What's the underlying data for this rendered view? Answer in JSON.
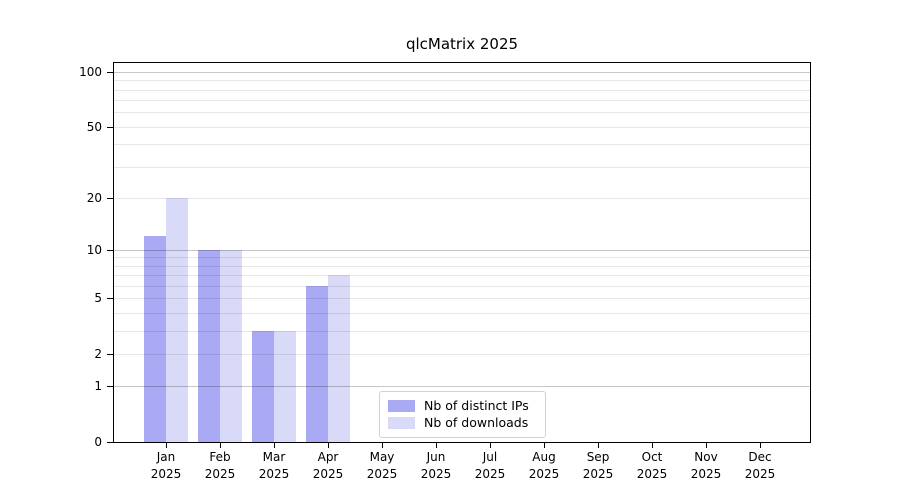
{
  "title": "qlcMatrix 2025",
  "chart_data": {
    "type": "bar",
    "title": "qlcMatrix 2025",
    "categories": [
      "Jan",
      "Feb",
      "Mar",
      "Apr",
      "May",
      "Jun",
      "Jul",
      "Aug",
      "Sep",
      "Oct",
      "Nov",
      "Dec"
    ],
    "x_tick_year": "2025",
    "series": [
      {
        "name": "Nb of distinct IPs",
        "color": "#a9a9f4",
        "values": [
          12,
          10,
          3,
          6,
          0,
          0,
          0,
          0,
          0,
          0,
          0,
          0
        ]
      },
      {
        "name": "Nb of downloads",
        "color": "#d9d9f8",
        "values": [
          20,
          10,
          3,
          7,
          0,
          0,
          0,
          0,
          0,
          0,
          0,
          0
        ]
      }
    ],
    "yscale": "log1p",
    "ylim": [
      0,
      112
    ],
    "yticks": [
      0,
      1,
      2,
      5,
      10,
      20,
      50,
      100
    ],
    "grid_major": [
      1,
      10,
      100
    ],
    "grid_minor": [
      2,
      3,
      4,
      5,
      6,
      7,
      8,
      9,
      20,
      30,
      40,
      50,
      60,
      70,
      80,
      90
    ],
    "xlabel": "",
    "ylabel": "",
    "legend_position": "inside lower center",
    "grid": "on"
  },
  "colors": {
    "ips_bar": "#a9a9f4",
    "downloads_bar": "#d9d9f8",
    "axis": "#000000",
    "grid_major": "#c6c6c6",
    "grid_minor": "#e9e9e9",
    "background": "#ffffff"
  }
}
